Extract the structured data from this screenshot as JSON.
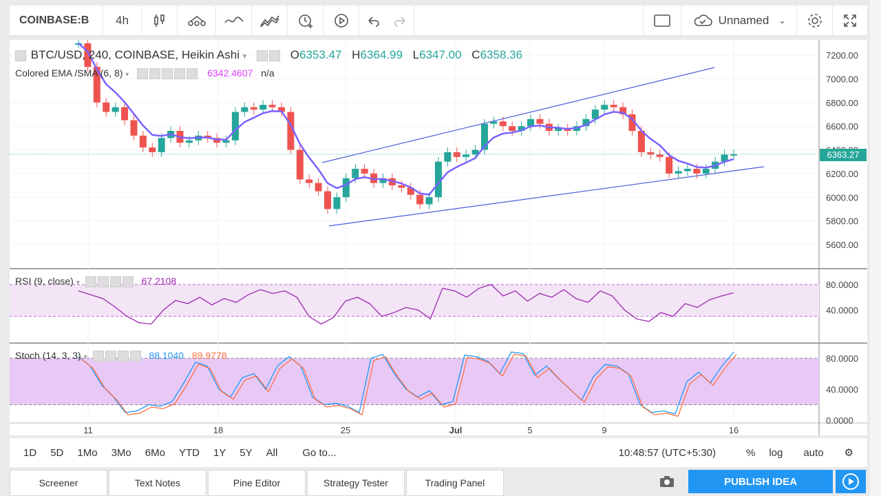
{
  "toolbar": {
    "symbol": "COINBASE:B",
    "interval": "4h",
    "chart_name": "Unnamed"
  },
  "legend": {
    "title": "BTC/USD, 240, COINBASE, Heikin Ashi",
    "o_label": "O",
    "o": "6353.47",
    "h_label": "H",
    "h": "6364.99",
    "l_label": "L",
    "l": "6347.00",
    "c_label": "C",
    "c": "6358.36",
    "ema": "Colored EMA /SMA (6, 8)",
    "ema_val": "6342.4607",
    "ema_na": "n/a",
    "rsi": "RSI (9, close)",
    "rsi_val": "67.2108",
    "stoch": "Stoch (14, 3, 3)",
    "stoch_k": "88.1040",
    "stoch_d": "89.9778"
  },
  "price_axis": [
    "7200.00",
    "7000.00",
    "6800.00",
    "6600.00",
    "6400.00",
    "6200.00",
    "6000.00",
    "5800.00",
    "5600.00"
  ],
  "current_price": "6363.27",
  "rsi_axis": [
    "80.0000",
    "40.0000"
  ],
  "stoch_axis": [
    "80.0000",
    "40.0000",
    "0.0000"
  ],
  "time_axis": [
    "11",
    "18",
    "25",
    "Jul",
    "5",
    "9",
    "16"
  ],
  "range_buttons": [
    "1D",
    "5D",
    "1Mo",
    "3Mo",
    "6Mo",
    "YTD",
    "1Y",
    "5Y",
    "All"
  ],
  "goto": "Go to...",
  "clock": "10:48:57 (UTC+5:30)",
  "scale_opts": [
    "%",
    "log",
    "auto"
  ],
  "tabs": [
    "Screener",
    "Text Notes",
    "Pine Editor",
    "Strategy Tester",
    "Trading Panel"
  ],
  "publish": "PUBLISH IDEA",
  "colors": {
    "up": "#26a69a",
    "down": "#ef5350",
    "ema": "#7b61ff",
    "rsi": "#9c27b0",
    "stoch_k": "#2196f3",
    "stoch_d": "#ff7043"
  }
}
